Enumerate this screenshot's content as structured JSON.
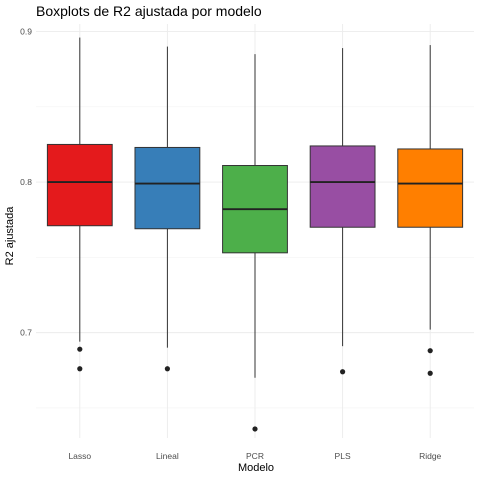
{
  "chart_data": {
    "type": "boxplot",
    "title": "Boxplots de R2 ajustada por modelo",
    "xlabel": "Modelo",
    "ylabel": "R2 ajustada",
    "ylim": [
      0.63,
      0.905
    ],
    "yticks": [
      0.7,
      0.8,
      0.9
    ],
    "ytick_labels": [
      "0.7",
      "0.8",
      "0.9"
    ],
    "grid": true,
    "legend": "none",
    "categories": [
      "Lasso",
      "Lineal",
      "PCR",
      "PLS",
      "Ridge"
    ],
    "boxes": [
      {
        "name": "Lasso",
        "color": "#E41A1C",
        "whisker_low": 0.694,
        "q1": 0.771,
        "median": 0.8,
        "q3": 0.825,
        "whisker_high": 0.896,
        "outliers": [
          0.689,
          0.676
        ]
      },
      {
        "name": "Lineal",
        "color": "#377EB8",
        "whisker_low": 0.69,
        "q1": 0.769,
        "median": 0.799,
        "q3": 0.823,
        "whisker_high": 0.89,
        "outliers": [
          0.676
        ]
      },
      {
        "name": "PCR",
        "color": "#4DAF4A",
        "whisker_low": 0.67,
        "q1": 0.753,
        "median": 0.782,
        "q3": 0.811,
        "whisker_high": 0.885,
        "outliers": [
          0.636
        ]
      },
      {
        "name": "PLS",
        "color": "#984EA3",
        "whisker_low": 0.691,
        "q1": 0.77,
        "median": 0.8,
        "q3": 0.824,
        "whisker_high": 0.889,
        "outliers": [
          0.674
        ]
      },
      {
        "name": "Ridge",
        "color": "#FF7F00",
        "whisker_low": 0.702,
        "q1": 0.77,
        "median": 0.799,
        "q3": 0.822,
        "whisker_high": 0.891,
        "outliers": [
          0.688,
          0.673
        ]
      }
    ]
  }
}
